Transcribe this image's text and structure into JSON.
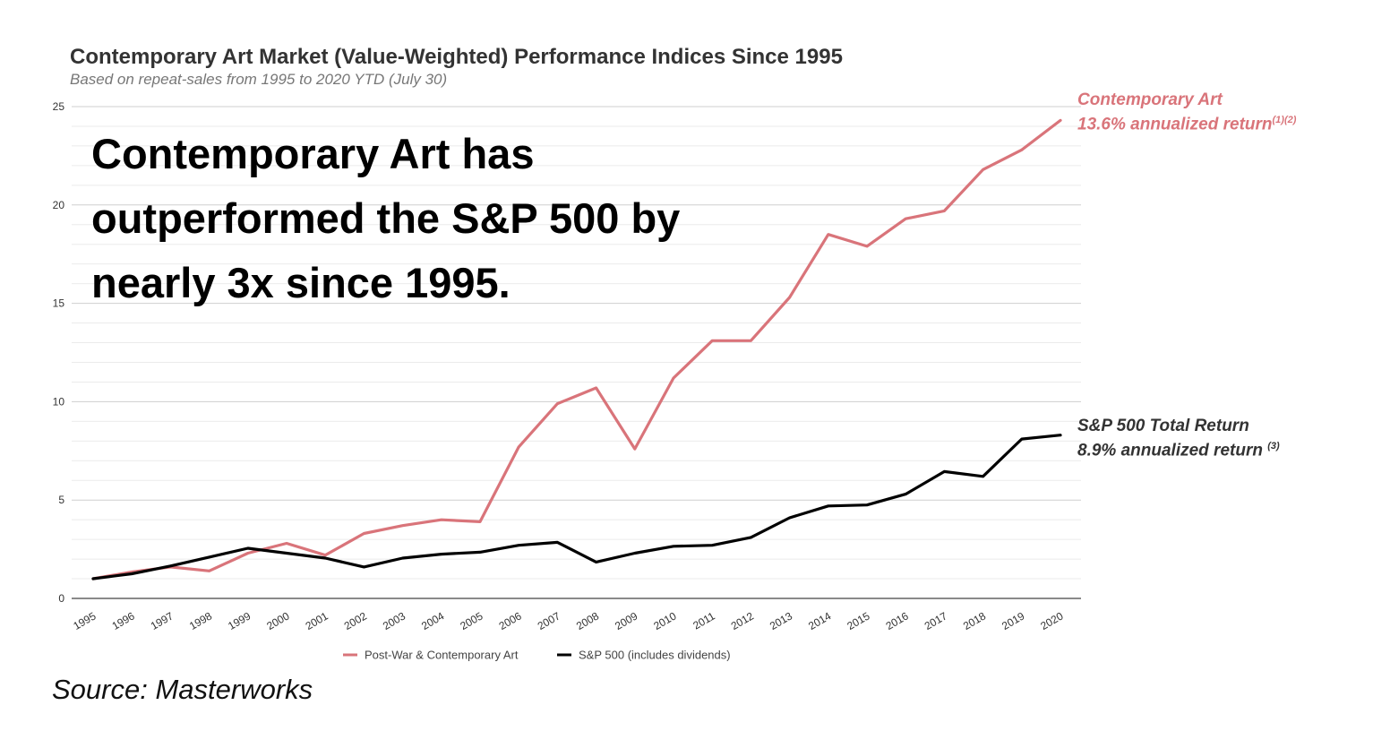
{
  "chart_data": {
    "type": "line",
    "title": "Contemporary Art Market (Value-Weighted) Performance Indices Since 1995",
    "subtitle": "Based on repeat-sales from 1995 to 2020 YTD (July 30)",
    "x": [
      "1995",
      "1996",
      "1997",
      "1998",
      "1999",
      "2000",
      "2001",
      "2002",
      "2003",
      "2004",
      "2005",
      "2006",
      "2007",
      "2008",
      "2009",
      "2010",
      "2011",
      "2012",
      "2013",
      "2014",
      "2015",
      "2016",
      "2017",
      "2018",
      "2019",
      "2020"
    ],
    "yticks": [
      "0",
      "5",
      "10",
      "15",
      "20",
      "25"
    ],
    "ylim": [
      0,
      25
    ],
    "grid": true,
    "legend_position": "bottom",
    "series": [
      {
        "name": "Post-War & Contemporary Art",
        "color": "#d9747a",
        "values": [
          1.0,
          1.35,
          1.6,
          1.4,
          2.3,
          2.8,
          2.2,
          3.3,
          3.7,
          4.0,
          3.9,
          7.7,
          9.9,
          10.7,
          7.6,
          11.2,
          13.1,
          13.1,
          15.3,
          18.5,
          17.9,
          19.3,
          19.7,
          21.8,
          22.8,
          24.3
        ]
      },
      {
        "name": "S&P 500 (includes dividends)",
        "color": "#000000",
        "values": [
          1.0,
          1.25,
          1.65,
          2.1,
          2.55,
          2.3,
          2.05,
          1.6,
          2.05,
          2.25,
          2.35,
          2.7,
          2.85,
          1.85,
          2.3,
          2.65,
          2.7,
          3.1,
          4.1,
          4.7,
          4.75,
          5.3,
          6.45,
          6.2,
          8.1,
          8.3
        ]
      }
    ],
    "annotations": {
      "art_line1": "Contemporary Art",
      "art_line2": "13.6% annualized return",
      "art_note": "(1)(2)",
      "sp_line1": "S&P 500 Total Return",
      "sp_line2": "8.9% annualized return",
      "sp_note": "(3)"
    }
  },
  "headline": {
    "line1": "Contemporary Art has",
    "line2": "outperformed the S&P 500 by",
    "line3": "nearly 3x since 1995."
  },
  "source": "Source: Masterworks"
}
